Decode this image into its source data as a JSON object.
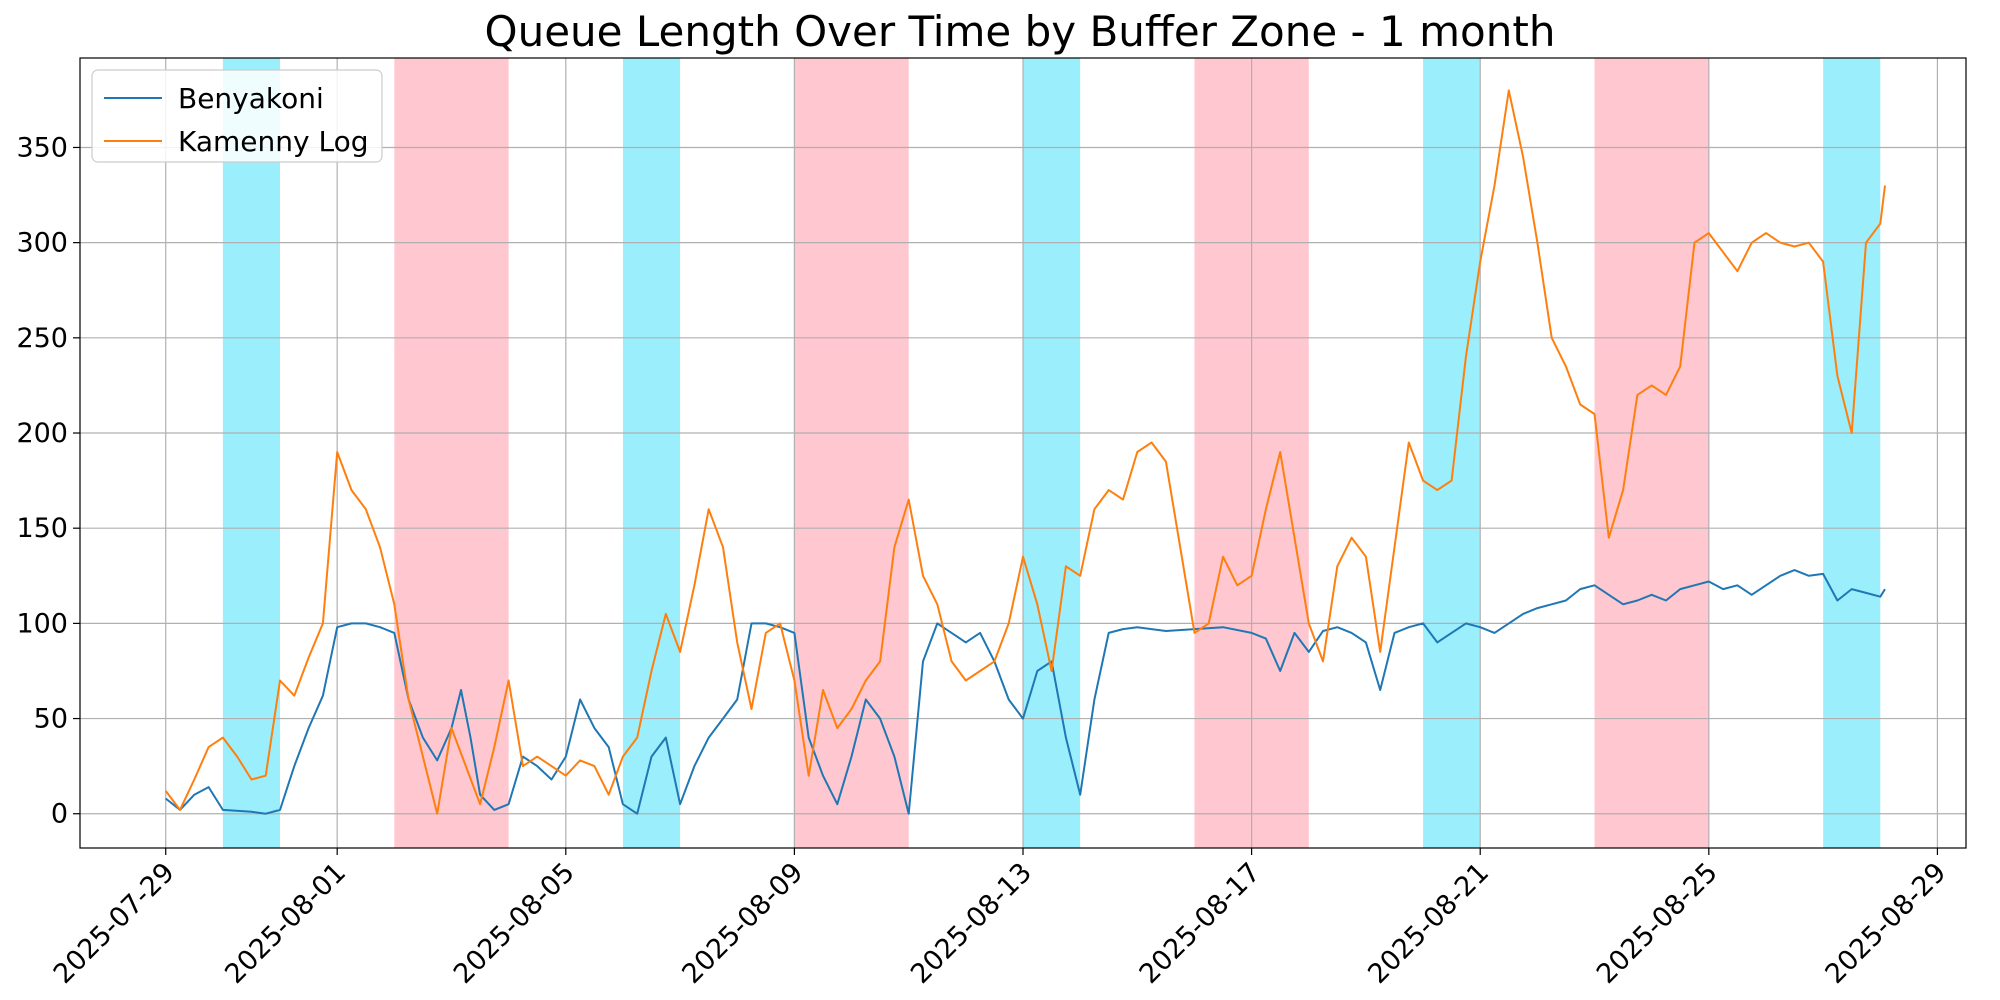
{
  "chart_data": {
    "type": "line",
    "title": "Queue Length Over Time by Buffer Zone - 1 month",
    "xlabel": "",
    "ylabel": "",
    "x_axis": {
      "kind": "date",
      "range": [
        "2025-07-27T12:00",
        "2025-08-29T12:00"
      ],
      "ticks": [
        "2025-07-29",
        "2025-08-01",
        "2025-08-05",
        "2025-08-09",
        "2025-08-13",
        "2025-08-17",
        "2025-08-21",
        "2025-08-25",
        "2025-08-29"
      ]
    },
    "y_axis": {
      "range": [
        -18,
        397
      ],
      "ticks": [
        0,
        50,
        100,
        150,
        200,
        250,
        300,
        350
      ]
    },
    "grid": true,
    "legend_position": "top-left",
    "shaded_bands": [
      {
        "start": "2025-07-30T00:00",
        "end": "2025-07-31T00:00",
        "color": "#9beefc"
      },
      {
        "start": "2025-08-02T00:00",
        "end": "2025-08-04T00:00",
        "color": "#ffc7cf"
      },
      {
        "start": "2025-08-06T00:00",
        "end": "2025-08-07T00:00",
        "color": "#9beefc"
      },
      {
        "start": "2025-08-09T00:00",
        "end": "2025-08-11T00:00",
        "color": "#ffc7cf"
      },
      {
        "start": "2025-08-13T00:00",
        "end": "2025-08-14T00:00",
        "color": "#9beefc"
      },
      {
        "start": "2025-08-16T00:00",
        "end": "2025-08-18T00:00",
        "color": "#ffc7cf"
      },
      {
        "start": "2025-08-20T00:00",
        "end": "2025-08-21T00:00",
        "color": "#9beefc"
      },
      {
        "start": "2025-08-23T00:00",
        "end": "2025-08-25T00:00",
        "color": "#ffc7cf"
      },
      {
        "start": "2025-08-27T00:00",
        "end": "2025-08-28T00:00",
        "color": "#9beefc"
      }
    ],
    "series": [
      {
        "name": "Benyakoni",
        "color": "#1f77b4",
        "points": [
          [
            "2025-07-29T00:00",
            8
          ],
          [
            "2025-07-29T06:00",
            2
          ],
          [
            "2025-07-29T12:00",
            10
          ],
          [
            "2025-07-29T18:00",
            14
          ],
          [
            "2025-07-30T00:00",
            2
          ],
          [
            "2025-07-30T12:00",
            1
          ],
          [
            "2025-07-30T18:00",
            0
          ],
          [
            "2025-07-31T00:00",
            2
          ],
          [
            "2025-07-31T06:00",
            25
          ],
          [
            "2025-07-31T12:00",
            45
          ],
          [
            "2025-07-31T18:00",
            62
          ],
          [
            "2025-08-01T00:00",
            98
          ],
          [
            "2025-08-01T06:00",
            100
          ],
          [
            "2025-08-01T12:00",
            100
          ],
          [
            "2025-08-01T18:00",
            98
          ],
          [
            "2025-08-02T00:00",
            95
          ],
          [
            "2025-08-02T06:00",
            60
          ],
          [
            "2025-08-02T12:00",
            40
          ],
          [
            "2025-08-02T18:00",
            28
          ],
          [
            "2025-08-03T00:00",
            45
          ],
          [
            "2025-08-03T04:00",
            65
          ],
          [
            "2025-08-03T08:00",
            40
          ],
          [
            "2025-08-03T12:00",
            10
          ],
          [
            "2025-08-03T18:00",
            2
          ],
          [
            "2025-08-04T00:00",
            5
          ],
          [
            "2025-08-04T06:00",
            30
          ],
          [
            "2025-08-04T12:00",
            25
          ],
          [
            "2025-08-04T18:00",
            18
          ],
          [
            "2025-08-05T00:00",
            30
          ],
          [
            "2025-08-05T06:00",
            60
          ],
          [
            "2025-08-05T12:00",
            45
          ],
          [
            "2025-08-05T18:00",
            35
          ],
          [
            "2025-08-06T00:00",
            5
          ],
          [
            "2025-08-06T06:00",
            0
          ],
          [
            "2025-08-06T12:00",
            30
          ],
          [
            "2025-08-06T18:00",
            40
          ],
          [
            "2025-08-07T00:00",
            5
          ],
          [
            "2025-08-07T06:00",
            25
          ],
          [
            "2025-08-07T12:00",
            40
          ],
          [
            "2025-08-07T18:00",
            50
          ],
          [
            "2025-08-08T00:00",
            60
          ],
          [
            "2025-08-08T06:00",
            100
          ],
          [
            "2025-08-08T12:00",
            100
          ],
          [
            "2025-08-08T18:00",
            98
          ],
          [
            "2025-08-09T00:00",
            95
          ],
          [
            "2025-08-09T06:00",
            40
          ],
          [
            "2025-08-09T12:00",
            20
          ],
          [
            "2025-08-09T18:00",
            5
          ],
          [
            "2025-08-10T00:00",
            30
          ],
          [
            "2025-08-10T06:00",
            60
          ],
          [
            "2025-08-10T12:00",
            50
          ],
          [
            "2025-08-10T18:00",
            30
          ],
          [
            "2025-08-11T00:00",
            0
          ],
          [
            "2025-08-11T06:00",
            80
          ],
          [
            "2025-08-11T12:00",
            100
          ],
          [
            "2025-08-11T18:00",
            95
          ],
          [
            "2025-08-12T00:00",
            90
          ],
          [
            "2025-08-12T06:00",
            95
          ],
          [
            "2025-08-12T12:00",
            80
          ],
          [
            "2025-08-12T18:00",
            60
          ],
          [
            "2025-08-13T00:00",
            50
          ],
          [
            "2025-08-13T06:00",
            75
          ],
          [
            "2025-08-13T12:00",
            80
          ],
          [
            "2025-08-13T18:00",
            40
          ],
          [
            "2025-08-14T00:00",
            10
          ],
          [
            "2025-08-14T06:00",
            60
          ],
          [
            "2025-08-14T12:00",
            95
          ],
          [
            "2025-08-14T18:00",
            97
          ],
          [
            "2025-08-15T00:00",
            98
          ],
          [
            "2025-08-15T12:00",
            96
          ],
          [
            "2025-08-16T00:00",
            97
          ],
          [
            "2025-08-16T12:00",
            98
          ],
          [
            "2025-08-17T00:00",
            95
          ],
          [
            "2025-08-17T06:00",
            92
          ],
          [
            "2025-08-17T12:00",
            75
          ],
          [
            "2025-08-17T18:00",
            95
          ],
          [
            "2025-08-18T00:00",
            85
          ],
          [
            "2025-08-18T06:00",
            96
          ],
          [
            "2025-08-18T12:00",
            98
          ],
          [
            "2025-08-18T18:00",
            95
          ],
          [
            "2025-08-19T00:00",
            90
          ],
          [
            "2025-08-19T06:00",
            65
          ],
          [
            "2025-08-19T12:00",
            95
          ],
          [
            "2025-08-19T18:00",
            98
          ],
          [
            "2025-08-20T00:00",
            100
          ],
          [
            "2025-08-20T06:00",
            90
          ],
          [
            "2025-08-20T12:00",
            95
          ],
          [
            "2025-08-20T18:00",
            100
          ],
          [
            "2025-08-21T00:00",
            98
          ],
          [
            "2025-08-21T06:00",
            95
          ],
          [
            "2025-08-21T12:00",
            100
          ],
          [
            "2025-08-21T18:00",
            105
          ],
          [
            "2025-08-22T00:00",
            108
          ],
          [
            "2025-08-22T06:00",
            110
          ],
          [
            "2025-08-22T12:00",
            112
          ],
          [
            "2025-08-22T18:00",
            118
          ],
          [
            "2025-08-23T00:00",
            120
          ],
          [
            "2025-08-23T06:00",
            115
          ],
          [
            "2025-08-23T12:00",
            110
          ],
          [
            "2025-08-23T18:00",
            112
          ],
          [
            "2025-08-24T00:00",
            115
          ],
          [
            "2025-08-24T06:00",
            112
          ],
          [
            "2025-08-24T12:00",
            118
          ],
          [
            "2025-08-24T18:00",
            120
          ],
          [
            "2025-08-25T00:00",
            122
          ],
          [
            "2025-08-25T06:00",
            118
          ],
          [
            "2025-08-25T12:00",
            120
          ],
          [
            "2025-08-25T18:00",
            115
          ],
          [
            "2025-08-26T00:00",
            120
          ],
          [
            "2025-08-26T06:00",
            125
          ],
          [
            "2025-08-26T12:00",
            128
          ],
          [
            "2025-08-26T18:00",
            125
          ],
          [
            "2025-08-27T00:00",
            126
          ],
          [
            "2025-08-27T06:00",
            112
          ],
          [
            "2025-08-27T12:00",
            118
          ],
          [
            "2025-08-27T18:00",
            116
          ],
          [
            "2025-08-28T00:00",
            114
          ],
          [
            "2025-08-28T02:00",
            118
          ]
        ]
      },
      {
        "name": "Kamenny Log",
        "color": "#ff7f0e",
        "points": [
          [
            "2025-07-29T00:00",
            12
          ],
          [
            "2025-07-29T06:00",
            2
          ],
          [
            "2025-07-29T12:00",
            18
          ],
          [
            "2025-07-29T18:00",
            35
          ],
          [
            "2025-07-30T00:00",
            40
          ],
          [
            "2025-07-30T06:00",
            30
          ],
          [
            "2025-07-30T12:00",
            18
          ],
          [
            "2025-07-30T18:00",
            20
          ],
          [
            "2025-07-31T00:00",
            70
          ],
          [
            "2025-07-31T06:00",
            62
          ],
          [
            "2025-07-31T12:00",
            82
          ],
          [
            "2025-07-31T18:00",
            100
          ],
          [
            "2025-08-01T00:00",
            190
          ],
          [
            "2025-08-01T06:00",
            170
          ],
          [
            "2025-08-01T12:00",
            160
          ],
          [
            "2025-08-01T18:00",
            140
          ],
          [
            "2025-08-02T00:00",
            110
          ],
          [
            "2025-08-02T06:00",
            60
          ],
          [
            "2025-08-02T12:00",
            30
          ],
          [
            "2025-08-02T18:00",
            0
          ],
          [
            "2025-08-03T00:00",
            45
          ],
          [
            "2025-08-03T06:00",
            25
          ],
          [
            "2025-08-03T12:00",
            5
          ],
          [
            "2025-08-03T18:00",
            35
          ],
          [
            "2025-08-04T00:00",
            70
          ],
          [
            "2025-08-04T06:00",
            25
          ],
          [
            "2025-08-04T12:00",
            30
          ],
          [
            "2025-08-04T18:00",
            25
          ],
          [
            "2025-08-05T00:00",
            20
          ],
          [
            "2025-08-05T06:00",
            28
          ],
          [
            "2025-08-05T12:00",
            25
          ],
          [
            "2025-08-05T18:00",
            10
          ],
          [
            "2025-08-06T00:00",
            30
          ],
          [
            "2025-08-06T06:00",
            40
          ],
          [
            "2025-08-06T12:00",
            75
          ],
          [
            "2025-08-06T18:00",
            105
          ],
          [
            "2025-08-07T00:00",
            85
          ],
          [
            "2025-08-07T06:00",
            120
          ],
          [
            "2025-08-07T12:00",
            160
          ],
          [
            "2025-08-07T18:00",
            140
          ],
          [
            "2025-08-08T00:00",
            90
          ],
          [
            "2025-08-08T06:00",
            55
          ],
          [
            "2025-08-08T12:00",
            95
          ],
          [
            "2025-08-08T18:00",
            100
          ],
          [
            "2025-08-09T00:00",
            70
          ],
          [
            "2025-08-09T06:00",
            20
          ],
          [
            "2025-08-09T12:00",
            65
          ],
          [
            "2025-08-09T18:00",
            45
          ],
          [
            "2025-08-10T00:00",
            55
          ],
          [
            "2025-08-10T06:00",
            70
          ],
          [
            "2025-08-10T12:00",
            80
          ],
          [
            "2025-08-10T18:00",
            140
          ],
          [
            "2025-08-11T00:00",
            165
          ],
          [
            "2025-08-11T06:00",
            125
          ],
          [
            "2025-08-11T12:00",
            110
          ],
          [
            "2025-08-11T18:00",
            80
          ],
          [
            "2025-08-12T00:00",
            70
          ],
          [
            "2025-08-12T06:00",
            75
          ],
          [
            "2025-08-12T12:00",
            80
          ],
          [
            "2025-08-12T18:00",
            100
          ],
          [
            "2025-08-13T00:00",
            135
          ],
          [
            "2025-08-13T06:00",
            110
          ],
          [
            "2025-08-13T12:00",
            75
          ],
          [
            "2025-08-13T18:00",
            130
          ],
          [
            "2025-08-14T00:00",
            125
          ],
          [
            "2025-08-14T06:00",
            160
          ],
          [
            "2025-08-14T12:00",
            170
          ],
          [
            "2025-08-14T18:00",
            165
          ],
          [
            "2025-08-15T00:00",
            190
          ],
          [
            "2025-08-15T06:00",
            195
          ],
          [
            "2025-08-15T12:00",
            185
          ],
          [
            "2025-08-15T18:00",
            140
          ],
          [
            "2025-08-16T00:00",
            95
          ],
          [
            "2025-08-16T06:00",
            100
          ],
          [
            "2025-08-16T12:00",
            135
          ],
          [
            "2025-08-16T18:00",
            120
          ],
          [
            "2025-08-17T00:00",
            125
          ],
          [
            "2025-08-17T06:00",
            160
          ],
          [
            "2025-08-17T12:00",
            190
          ],
          [
            "2025-08-17T18:00",
            145
          ],
          [
            "2025-08-18T00:00",
            100
          ],
          [
            "2025-08-18T06:00",
            80
          ],
          [
            "2025-08-18T12:00",
            130
          ],
          [
            "2025-08-18T18:00",
            145
          ],
          [
            "2025-08-19T00:00",
            135
          ],
          [
            "2025-08-19T06:00",
            85
          ],
          [
            "2025-08-19T12:00",
            140
          ],
          [
            "2025-08-19T18:00",
            195
          ],
          [
            "2025-08-20T00:00",
            175
          ],
          [
            "2025-08-20T06:00",
            170
          ],
          [
            "2025-08-20T12:00",
            175
          ],
          [
            "2025-08-20T18:00",
            240
          ],
          [
            "2025-08-21T00:00",
            290
          ],
          [
            "2025-08-21T06:00",
            330
          ],
          [
            "2025-08-21T12:00",
            380
          ],
          [
            "2025-08-21T18:00",
            345
          ],
          [
            "2025-08-22T00:00",
            300
          ],
          [
            "2025-08-22T06:00",
            250
          ],
          [
            "2025-08-22T12:00",
            235
          ],
          [
            "2025-08-22T18:00",
            215
          ],
          [
            "2025-08-23T00:00",
            210
          ],
          [
            "2025-08-23T06:00",
            145
          ],
          [
            "2025-08-23T12:00",
            170
          ],
          [
            "2025-08-23T18:00",
            220
          ],
          [
            "2025-08-24T00:00",
            225
          ],
          [
            "2025-08-24T06:00",
            220
          ],
          [
            "2025-08-24T12:00",
            235
          ],
          [
            "2025-08-24T18:00",
            300
          ],
          [
            "2025-08-25T00:00",
            305
          ],
          [
            "2025-08-25T06:00",
            295
          ],
          [
            "2025-08-25T12:00",
            285
          ],
          [
            "2025-08-25T18:00",
            300
          ],
          [
            "2025-08-26T00:00",
            305
          ],
          [
            "2025-08-26T06:00",
            300
          ],
          [
            "2025-08-26T12:00",
            298
          ],
          [
            "2025-08-26T18:00",
            300
          ],
          [
            "2025-08-27T00:00",
            290
          ],
          [
            "2025-08-27T06:00",
            230
          ],
          [
            "2025-08-27T12:00",
            200
          ],
          [
            "2025-08-27T18:00",
            300
          ],
          [
            "2025-08-28T00:00",
            310
          ],
          [
            "2025-08-28T02:00",
            330
          ]
        ]
      }
    ]
  }
}
